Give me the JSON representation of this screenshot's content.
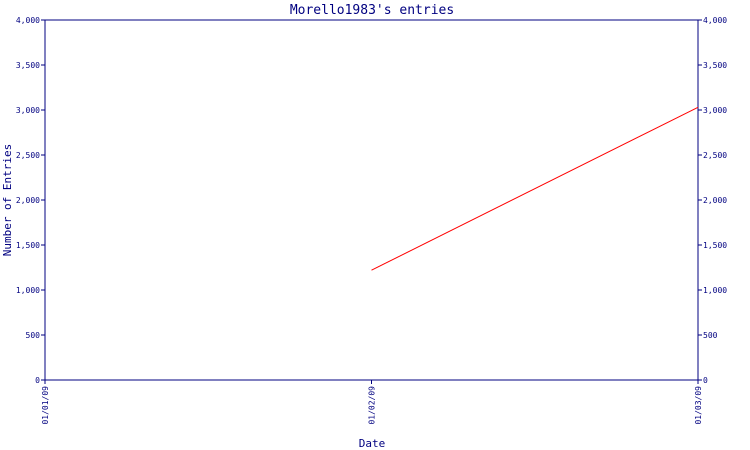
{
  "chart_data": {
    "type": "line",
    "title": "Morello1983's entries",
    "xlabel": "Date",
    "ylabel": "Number of Entries",
    "x_ticks": [
      "01/01/09",
      "01/02/09",
      "01/03/09"
    ],
    "ylim": [
      0,
      4000
    ],
    "y_ticks": [
      0,
      500,
      1000,
      1500,
      2000,
      2500,
      3000,
      3500,
      4000
    ],
    "y_tick_labels": [
      "0",
      "500",
      "1,000",
      "1,500",
      "2,000",
      "2,500",
      "3,000",
      "3,500",
      "4,000"
    ],
    "series": [
      {
        "x": [
          "01/02/09",
          "01/03/09"
        ],
        "values": [
          1220,
          3030
        ],
        "color": "#ff0000"
      }
    ],
    "axis_color": "#000080",
    "grid": false,
    "right_axis": true
  }
}
